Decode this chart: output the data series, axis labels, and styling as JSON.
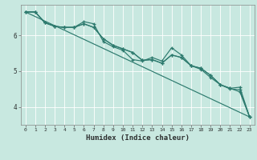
{
  "xlabel": "Humidex (Indice chaleur)",
  "bg_color": "#c8e8e0",
  "grid_color": "#aad4cc",
  "line_color": "#2d7a6e",
  "xlim": [
    -0.5,
    23.5
  ],
  "ylim": [
    3.5,
    6.85
  ],
  "yticks": [
    4,
    5,
    6
  ],
  "xticks": [
    0,
    1,
    2,
    3,
    4,
    5,
    6,
    7,
    8,
    9,
    10,
    11,
    12,
    13,
    14,
    15,
    16,
    17,
    18,
    19,
    20,
    21,
    22,
    23
  ],
  "line1_x": [
    0,
    1,
    2,
    3,
    4,
    5,
    6,
    7,
    8,
    9,
    10,
    11,
    12,
    13,
    14,
    15,
    16,
    17,
    18,
    19,
    20,
    21,
    22,
    23
  ],
  "line1_y": [
    6.65,
    6.65,
    6.35,
    6.25,
    6.22,
    6.22,
    6.32,
    6.22,
    5.9,
    5.72,
    5.62,
    5.52,
    5.3,
    5.32,
    5.22,
    5.45,
    5.38,
    5.15,
    5.08,
    4.88,
    4.62,
    4.52,
    4.42,
    3.72
  ],
  "line2_x": [
    0,
    1,
    2,
    3,
    4,
    5,
    6,
    7,
    8,
    9,
    10,
    11,
    12,
    13,
    14,
    15,
    16,
    17,
    18,
    19,
    20,
    21,
    22,
    23
  ],
  "line2_y": [
    6.65,
    6.65,
    6.35,
    6.25,
    6.22,
    6.22,
    6.38,
    6.32,
    5.82,
    5.68,
    5.58,
    5.32,
    5.28,
    5.38,
    5.28,
    5.65,
    5.45,
    5.15,
    5.05,
    4.82,
    4.62,
    4.5,
    4.48,
    3.72
  ],
  "line3_x": [
    0,
    1,
    2,
    3,
    4,
    5,
    6,
    7,
    8,
    9,
    10,
    11,
    12,
    13,
    14,
    15,
    16,
    17,
    18,
    19,
    20,
    21,
    22,
    23
  ],
  "line3_y": [
    6.65,
    6.65,
    6.35,
    6.25,
    6.22,
    6.22,
    6.32,
    6.22,
    5.9,
    5.72,
    5.62,
    5.52,
    5.3,
    5.32,
    5.22,
    5.45,
    5.38,
    5.15,
    5.08,
    4.88,
    4.62,
    4.52,
    4.55,
    3.72
  ],
  "line4_x": [
    0,
    23
  ],
  "line4_y": [
    6.65,
    3.72
  ]
}
